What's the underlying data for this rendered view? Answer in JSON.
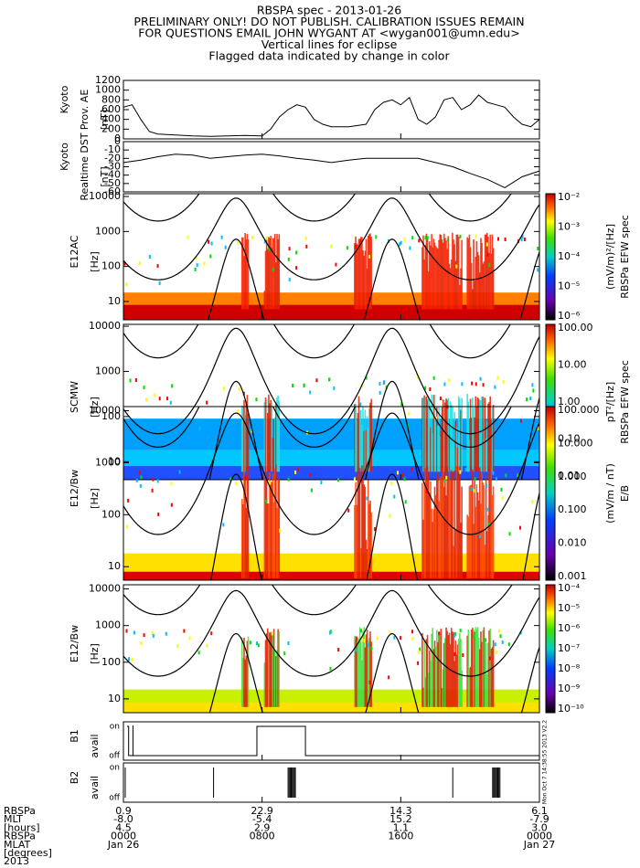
{
  "header": {
    "lines": [
      "RBSPA spec - 2013-01-26",
      "PRELIMINARY ONLY! DO NOT PUBLISH. CALIBRATION ISSUES REMAIN",
      "FOR QUESTIONS EMAIL JOHN WYGANT AT <wygan001@umn.edu>",
      "Vertical lines for eclipse",
      "Flagged data indicated by change in color"
    ]
  },
  "panels": [
    {
      "type": "line",
      "label": [
        "Kyoto",
        "Prov. AE",
        "[nT]"
      ],
      "ylim": [
        0,
        1200
      ],
      "yticks": [
        0,
        200,
        400,
        600,
        800,
        1000,
        1200
      ],
      "x": [
        0,
        0.5,
        1,
        1.5,
        2,
        3,
        4,
        5,
        6,
        7,
        8,
        8.5,
        9,
        9.5,
        10,
        10.5,
        11,
        11.5,
        12,
        13,
        14,
        14.5,
        15,
        15.5,
        16,
        16.5,
        17,
        17.5,
        18,
        18.5,
        19,
        19.5,
        20,
        20.5,
        21,
        21.5,
        22,
        22.5,
        23,
        23.5,
        24
      ],
      "values": [
        650,
        700,
        400,
        150,
        100,
        80,
        60,
        50,
        60,
        70,
        60,
        200,
        450,
        600,
        700,
        650,
        400,
        300,
        250,
        250,
        300,
        600,
        750,
        800,
        700,
        850,
        400,
        300,
        450,
        800,
        850,
        600,
        700,
        900,
        750,
        700,
        650,
        450,
        300,
        250,
        400
      ]
    },
    {
      "type": "line",
      "label": [
        "Kyoto",
        "Realtime DST",
        "[nT]"
      ],
      "ylim": [
        -60,
        0
      ],
      "yticks": [
        0,
        -10,
        -20,
        -30,
        -40,
        -50,
        -60
      ],
      "x": [
        0,
        1,
        2,
        3,
        4,
        5,
        6,
        7,
        8,
        9,
        10,
        11,
        12,
        13,
        14,
        15,
        16,
        17,
        18,
        19,
        20,
        21,
        22,
        23,
        24
      ],
      "values": [
        -25,
        -22,
        -18,
        -15,
        -16,
        -20,
        -18,
        -16,
        -15,
        -17,
        -20,
        -22,
        -25,
        -22,
        -20,
        -20,
        -20,
        -20,
        -25,
        -30,
        -38,
        -45,
        -55,
        -42,
        -35
      ]
    },
    {
      "type": "spectrogram",
      "label": [
        "E12AC",
        "[Hz]"
      ],
      "log": true,
      "ylim": [
        3,
        12000
      ],
      "yticks": [
        10,
        100,
        1000,
        10000
      ],
      "colorbar": [
        "10⁻²",
        "10⁻³",
        "10⁻⁴",
        "10⁻⁵",
        "10⁻⁶"
      ],
      "units": "(mV/m)²/[Hz]",
      "cbtitle": "RBSPa EFW spec"
    },
    {
      "type": "spectrogram",
      "label": [
        "SCMW",
        "[Hz]"
      ],
      "log": true,
      "ylim": [
        4,
        11000
      ],
      "yticks": [
        10,
        100,
        1000,
        10000
      ],
      "colorbar": [
        "100.00",
        "10.00",
        "1.00",
        "0.10",
        "0.01"
      ],
      "units": "pT²/[Hz]",
      "cbtitle": "RBSPa EFW spec"
    },
    {
      "type": "spectrogram",
      "label": [
        "E12/Bw",
        "[Hz]"
      ],
      "log": true,
      "ylim": [
        5.5,
        12000
      ],
      "yticks": [
        10,
        100,
        1000,
        10000
      ],
      "colorbar": [
        "100.000",
        "10.000",
        "1.000",
        "0.100",
        "0.010",
        "0.001"
      ],
      "units": "(mV/m / nT)",
      "cbtitle": "E/B"
    },
    {
      "type": "spectrogram",
      "label": [
        "E12/Bw",
        "[Hz]"
      ],
      "log": true,
      "ylim": [
        4.2,
        13000
      ],
      "yticks": [
        10,
        100,
        1000,
        10000
      ],
      "colorbar": [
        "10⁻⁴",
        "10⁻⁵",
        "10⁻⁶",
        "10⁻⁷",
        "10⁻⁸",
        "10⁻⁹",
        "10⁻¹⁰"
      ]
    },
    {
      "type": "flag",
      "label": [
        "B1",
        "avail"
      ],
      "yticks": [
        "on",
        "off"
      ]
    },
    {
      "type": "flag",
      "label": [
        "B2",
        "avail"
      ],
      "yticks": [
        "on",
        "off"
      ]
    }
  ],
  "footer": {
    "labels": [
      "RBSPa",
      "MLT",
      "[hours]",
      "RBSPa",
      "MLAT",
      "[degrees]",
      "2013"
    ],
    "columns": [
      [
        "0.9",
        "-8.0",
        "4.5",
        "0000",
        "Jan 26"
      ],
      [
        "22.9",
        "-5.4",
        "2.9",
        "0800"
      ],
      [
        "14.3",
        "15.2",
        "1.1",
        "1600"
      ],
      [
        "6.1",
        "-7.9",
        "3.0",
        "0000",
        "Jan 27"
      ]
    ]
  },
  "stamp": "Mon Oct 7 14:38:55 2013 V2.2"
}
